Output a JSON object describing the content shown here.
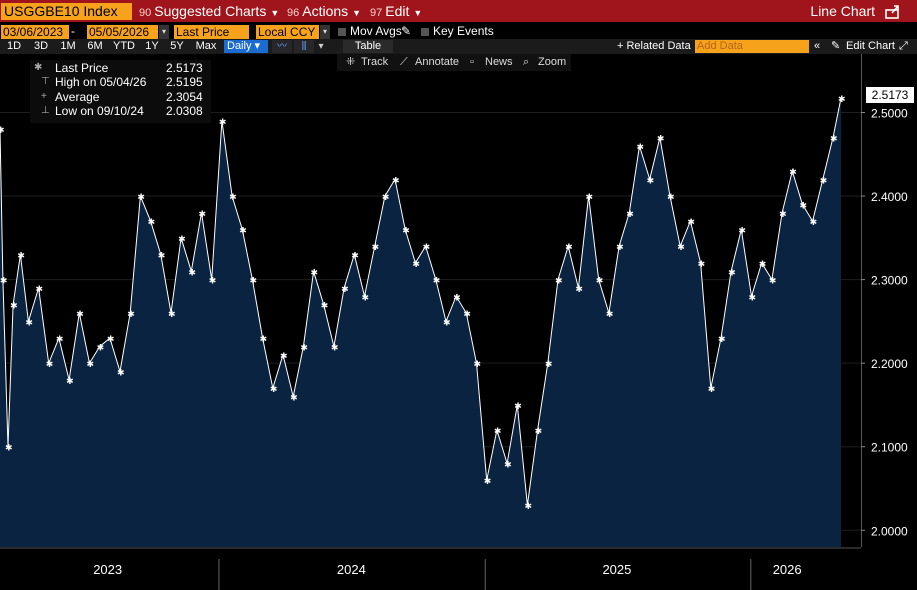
{
  "toolbar": {
    "ticker": "USGGBE10 Index",
    "suggested_num": "90",
    "suggested_label": "Suggested Charts",
    "actions_num": "96",
    "actions_label": "Actions",
    "edit_num": "97",
    "edit_label": "Edit",
    "chart_type": "Line Chart"
  },
  "settings": {
    "start_date": "03/06/2023",
    "end_date": "05/05/2026",
    "field": "Last Price",
    "currency": "Local CCY",
    "mov_avgs": "Mov Avgs",
    "key_events": "Key Events"
  },
  "ranges": [
    "1D",
    "3D",
    "1M",
    "6M",
    "YTD",
    "1Y",
    "5Y",
    "Max"
  ],
  "frequency": "Daily",
  "table_label": "Table",
  "related_label": "+ Related Data",
  "add_data_placeholder": "Add Data",
  "edit_chart_label": "Edit Chart",
  "tools": {
    "track": "Track",
    "annotate": "Annotate",
    "news": "News",
    "zoom": "Zoom"
  },
  "legend": {
    "last_label": "Last Price",
    "last_value": "2.5173",
    "high_label": "High on 05/04/26",
    "high_value": "2.5195",
    "avg_label": "Average",
    "avg_value": "2.3054",
    "low_label": "Low on 09/10/24",
    "low_value": "2.0308"
  },
  "last_price_tag": "2.5173",
  "colors": {
    "accent": "#f7a21b",
    "header": "#a0151b",
    "area_fill": "#0a2340",
    "line": "#ffffff"
  },
  "chart_data": {
    "type": "area",
    "ylim": [
      1.98,
      2.57
    ],
    "yticks": [
      "2.0000",
      "2.1000",
      "2.2000",
      "2.3000",
      "2.4000",
      "2.5000"
    ],
    "x_labels": [
      "2023",
      "2024",
      "2025",
      "2026"
    ],
    "x_range": [
      "2023-03-06",
      "2026-05-05"
    ],
    "series": [
      {
        "name": "Last Price",
        "points": [
          [
            "2023-03-06",
            2.48
          ],
          [
            "2023-03-10",
            2.3
          ],
          [
            "2023-03-17",
            2.1
          ],
          [
            "2023-03-24",
            2.27
          ],
          [
            "2023-04-03",
            2.33
          ],
          [
            "2023-04-14",
            2.25
          ],
          [
            "2023-04-28",
            2.29
          ],
          [
            "2023-05-12",
            2.2
          ],
          [
            "2023-05-26",
            2.23
          ],
          [
            "2023-06-09",
            2.18
          ],
          [
            "2023-06-23",
            2.26
          ],
          [
            "2023-07-07",
            2.2
          ],
          [
            "2023-07-21",
            2.22
          ],
          [
            "2023-08-04",
            2.23
          ],
          [
            "2023-08-18",
            2.19
          ],
          [
            "2023-09-01",
            2.26
          ],
          [
            "2023-09-15",
            2.4
          ],
          [
            "2023-09-29",
            2.37
          ],
          [
            "2023-10-13",
            2.33
          ],
          [
            "2023-10-27",
            2.26
          ],
          [
            "2023-11-10",
            2.35
          ],
          [
            "2023-11-24",
            2.31
          ],
          [
            "2023-12-08",
            2.38
          ],
          [
            "2023-12-22",
            2.3
          ],
          [
            "2024-01-05",
            2.49
          ],
          [
            "2024-01-19",
            2.4
          ],
          [
            "2024-02-02",
            2.36
          ],
          [
            "2024-02-16",
            2.3
          ],
          [
            "2024-03-01",
            2.23
          ],
          [
            "2024-03-15",
            2.17
          ],
          [
            "2024-03-29",
            2.21
          ],
          [
            "2024-04-12",
            2.16
          ],
          [
            "2024-04-26",
            2.22
          ],
          [
            "2024-05-10",
            2.31
          ],
          [
            "2024-05-24",
            2.27
          ],
          [
            "2024-06-07",
            2.22
          ],
          [
            "2024-06-21",
            2.29
          ],
          [
            "2024-07-05",
            2.33
          ],
          [
            "2024-07-19",
            2.28
          ],
          [
            "2024-08-02",
            2.34
          ],
          [
            "2024-08-16",
            2.4
          ],
          [
            "2024-08-30",
            2.42
          ],
          [
            "2024-09-13",
            2.36
          ],
          [
            "2024-09-27",
            2.32
          ],
          [
            "2024-10-11",
            2.34
          ],
          [
            "2024-10-25",
            2.3
          ],
          [
            "2024-11-08",
            2.25
          ],
          [
            "2024-11-22",
            2.28
          ],
          [
            "2024-12-06",
            2.26
          ],
          [
            "2024-12-20",
            2.2
          ],
          [
            "2025-01-03",
            2.06
          ],
          [
            "2025-01-17",
            2.12
          ],
          [
            "2025-01-31",
            2.08
          ],
          [
            "2025-02-14",
            2.15
          ],
          [
            "2025-02-28",
            2.03
          ],
          [
            "2025-03-14",
            2.12
          ],
          [
            "2025-03-28",
            2.2
          ],
          [
            "2025-04-11",
            2.3
          ],
          [
            "2025-04-25",
            2.34
          ],
          [
            "2025-05-09",
            2.29
          ],
          [
            "2025-05-23",
            2.4
          ],
          [
            "2025-06-06",
            2.3
          ],
          [
            "2025-06-20",
            2.26
          ],
          [
            "2025-07-04",
            2.34
          ],
          [
            "2025-07-18",
            2.38
          ],
          [
            "2025-08-01",
            2.46
          ],
          [
            "2025-08-15",
            2.42
          ],
          [
            "2025-08-29",
            2.47
          ],
          [
            "2025-09-12",
            2.4
          ],
          [
            "2025-09-26",
            2.34
          ],
          [
            "2025-10-10",
            2.37
          ],
          [
            "2025-10-24",
            2.32
          ],
          [
            "2025-11-07",
            2.17
          ],
          [
            "2025-11-21",
            2.23
          ],
          [
            "2025-12-05",
            2.31
          ],
          [
            "2025-12-19",
            2.36
          ],
          [
            "2026-01-02",
            2.28
          ],
          [
            "2026-01-16",
            2.32
          ],
          [
            "2026-01-30",
            2.3
          ],
          [
            "2026-02-13",
            2.38
          ],
          [
            "2026-02-27",
            2.43
          ],
          [
            "2026-03-13",
            2.39
          ],
          [
            "2026-03-27",
            2.37
          ],
          [
            "2026-04-10",
            2.42
          ],
          [
            "2026-04-24",
            2.47
          ],
          [
            "2026-05-05",
            2.5173
          ]
        ]
      }
    ]
  }
}
